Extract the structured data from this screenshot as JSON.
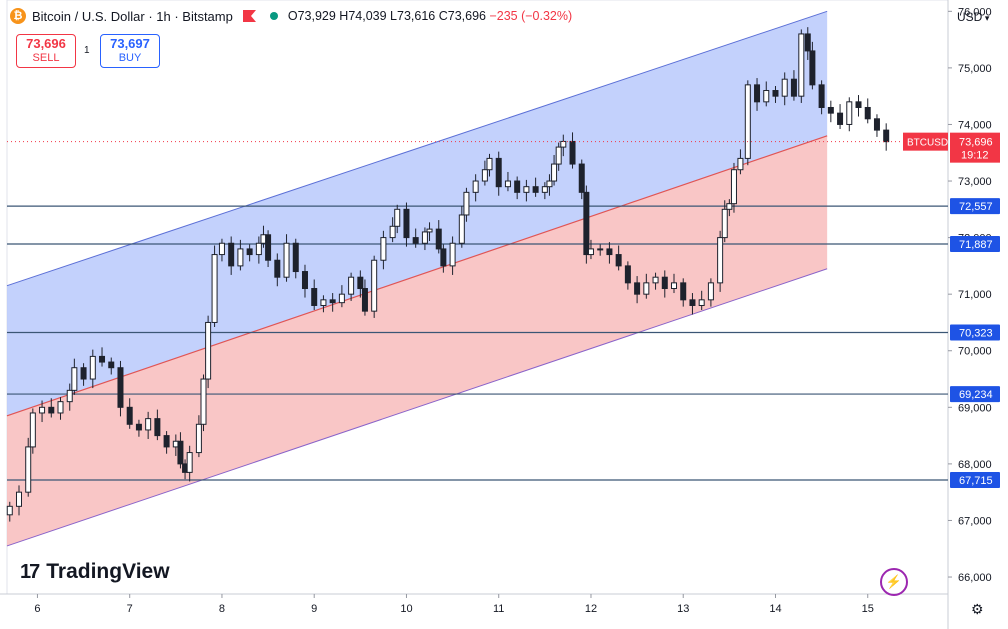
{
  "header": {
    "symbol_title": "Bitcoin / U.S. Dollar · 1h · Bitstamp",
    "open": "O73,929",
    "high": "H74,039",
    "low": "L73,616",
    "close": "C73,696",
    "change": "−235 (−0.32%)"
  },
  "trade": {
    "sell_price": "73,696",
    "sell_label": "SELL",
    "spread": "1",
    "buy_price": "73,697",
    "buy_label": "BUY"
  },
  "currency_label": "USD",
  "logo_text": "TradingView",
  "price_tag": {
    "symbol": "BTCUSD",
    "price": "73,696",
    "countdown": "19:12"
  },
  "colors": {
    "up": "#089981",
    "down": "#f23645",
    "candle": "#1e222d",
    "upper_band": "#b8c9fb",
    "lower_band": "#f8bcbc",
    "level_line": "#3b5675",
    "level_tag": "#1e53e5"
  },
  "icons": [
    "bitcoin-icon",
    "flag-icon",
    "market-status-icon",
    "sparkle-icon",
    "gear-icon"
  ],
  "chart_data": {
    "type": "candlestick",
    "x_axis": {
      "ticks": [
        "6",
        "7",
        "8",
        "9",
        "10",
        "11",
        "12",
        "13",
        "14",
        "15"
      ],
      "unit": "day",
      "first_tick_value": 6
    },
    "y_axis": {
      "side": "right",
      "ticks": [
        66000,
        67000,
        68000,
        69000,
        70000,
        71000,
        72000,
        73000,
        74000,
        75000,
        76000
      ],
      "tick_labels": [
        "66,000",
        "67,000",
        "68,000",
        "69,000",
        "70,000",
        "71,000",
        "72,000",
        "73,000",
        "74,000",
        "75,000",
        "76,000"
      ],
      "range": [
        65700,
        76200
      ]
    },
    "last_close": 73696,
    "horizontal_levels": [
      {
        "value": 72557,
        "label": "72,557"
      },
      {
        "value": 71887,
        "label": "71,887"
      },
      {
        "value": 70323,
        "label": "70,323"
      },
      {
        "value": 69234,
        "label": "69,234"
      },
      {
        "value": 67715,
        "label": "67,715"
      }
    ],
    "regression_channel": {
      "x_start": 5.67,
      "x_end": 14.56,
      "upper": [
        71150,
        76000
      ],
      "mid": [
        68850,
        73800
      ],
      "lower": [
        66550,
        71450
      ]
    },
    "closes": [
      [
        5.7,
        67250
      ],
      [
        5.8,
        67500
      ],
      [
        5.9,
        68300
      ],
      [
        5.95,
        68900
      ],
      [
        6.05,
        69000
      ],
      [
        6.15,
        68900
      ],
      [
        6.25,
        69100
      ],
      [
        6.35,
        69300
      ],
      [
        6.4,
        69700
      ],
      [
        6.5,
        69500
      ],
      [
        6.6,
        69900
      ],
      [
        6.7,
        69800
      ],
      [
        6.8,
        69700
      ],
      [
        6.9,
        69000
      ],
      [
        7.0,
        68700
      ],
      [
        7.1,
        68600
      ],
      [
        7.2,
        68800
      ],
      [
        7.3,
        68500
      ],
      [
        7.4,
        68300
      ],
      [
        7.5,
        68400
      ],
      [
        7.55,
        68000
      ],
      [
        7.6,
        67850
      ],
      [
        7.65,
        68200
      ],
      [
        7.75,
        68700
      ],
      [
        7.8,
        69500
      ],
      [
        7.85,
        70500
      ],
      [
        7.92,
        71700
      ],
      [
        8.0,
        71900
      ],
      [
        8.1,
        71500
      ],
      [
        8.2,
        71800
      ],
      [
        8.3,
        71700
      ],
      [
        8.4,
        71900
      ],
      [
        8.45,
        72050
      ],
      [
        8.5,
        71600
      ],
      [
        8.6,
        71300
      ],
      [
        8.7,
        71900
      ],
      [
        8.8,
        71400
      ],
      [
        8.9,
        71100
      ],
      [
        9.0,
        70800
      ],
      [
        9.1,
        70900
      ],
      [
        9.2,
        70850
      ],
      [
        9.3,
        71000
      ],
      [
        9.4,
        71300
      ],
      [
        9.5,
        71100
      ],
      [
        9.55,
        70700
      ],
      [
        9.65,
        71600
      ],
      [
        9.75,
        72000
      ],
      [
        9.85,
        72200
      ],
      [
        9.9,
        72500
      ],
      [
        10.0,
        72000
      ],
      [
        10.1,
        71900
      ],
      [
        10.2,
        72100
      ],
      [
        10.25,
        72150
      ],
      [
        10.35,
        71800
      ],
      [
        10.4,
        71500
      ],
      [
        10.5,
        71900
      ],
      [
        10.6,
        72400
      ],
      [
        10.65,
        72800
      ],
      [
        10.75,
        73000
      ],
      [
        10.85,
        73200
      ],
      [
        10.9,
        73400
      ],
      [
        11.0,
        72900
      ],
      [
        11.1,
        73000
      ],
      [
        11.2,
        72800
      ],
      [
        11.3,
        72900
      ],
      [
        11.4,
        72800
      ],
      [
        11.5,
        72900
      ],
      [
        11.55,
        73000
      ],
      [
        11.6,
        73300
      ],
      [
        11.65,
        73600
      ],
      [
        11.7,
        73700
      ],
      [
        11.8,
        73300
      ],
      [
        11.9,
        72800
      ],
      [
        11.95,
        71700
      ],
      [
        12.0,
        71800
      ],
      [
        12.1,
        71800
      ],
      [
        12.2,
        71700
      ],
      [
        12.3,
        71500
      ],
      [
        12.4,
        71200
      ],
      [
        12.5,
        71000
      ],
      [
        12.6,
        71200
      ],
      [
        12.7,
        71300
      ],
      [
        12.8,
        71100
      ],
      [
        12.9,
        71200
      ],
      [
        13.0,
        70900
      ],
      [
        13.1,
        70800
      ],
      [
        13.2,
        70900
      ],
      [
        13.3,
        71200
      ],
      [
        13.4,
        72000
      ],
      [
        13.45,
        72500
      ],
      [
        13.5,
        72600
      ],
      [
        13.55,
        73200
      ],
      [
        13.62,
        73400
      ],
      [
        13.7,
        74700
      ],
      [
        13.8,
        74400
      ],
      [
        13.9,
        74600
      ],
      [
        14.0,
        74500
      ],
      [
        14.1,
        74800
      ],
      [
        14.2,
        74500
      ],
      [
        14.28,
        75600
      ],
      [
        14.35,
        75300
      ],
      [
        14.4,
        74700
      ],
      [
        14.5,
        74300
      ],
      [
        14.6,
        74200
      ],
      [
        14.7,
        74000
      ],
      [
        14.8,
        74400
      ],
      [
        14.9,
        74300
      ],
      [
        15.0,
        74100
      ],
      [
        15.1,
        73900
      ],
      [
        15.2,
        73696
      ]
    ]
  }
}
